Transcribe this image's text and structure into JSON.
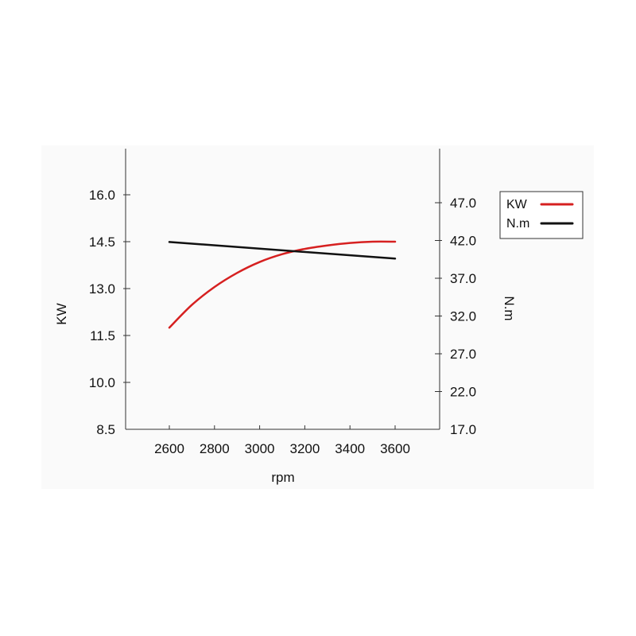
{
  "chart_data": {
    "type": "line",
    "xlabel": "rpm",
    "ylabel_left": "KW",
    "ylabel_right": "N.m",
    "x_ticks": [
      2600,
      2800,
      3000,
      3200,
      3400,
      3600
    ],
    "x_range": [
      2400,
      3800
    ],
    "y_left_ticks": [
      "8.5",
      "10.0",
      "11.5",
      "13.0",
      "14.5",
      "16.0"
    ],
    "y_left_range": [
      8.5,
      16.0
    ],
    "y_right_ticks": [
      "17.0",
      "22.0",
      "27.0",
      "32.0",
      "37.0",
      "42.0",
      "47.0"
    ],
    "y_right_range": [
      17.0,
      47.0
    ],
    "grid": false,
    "legend_position": "right",
    "series": [
      {
        "name": "KW",
        "axis": "left",
        "color": "#d62020",
        "x": [
          2600,
          2700,
          2800,
          2900,
          3000,
          3100,
          3200,
          3300,
          3400,
          3500,
          3600
        ],
        "y": [
          11.75,
          12.48,
          13.05,
          13.5,
          13.85,
          14.1,
          14.27,
          14.38,
          14.46,
          14.5,
          14.5
        ]
      },
      {
        "name": "N.m",
        "axis": "right",
        "color": "#111111",
        "x": [
          2600,
          3600
        ],
        "y": [
          41.8,
          39.6
        ]
      }
    ]
  }
}
